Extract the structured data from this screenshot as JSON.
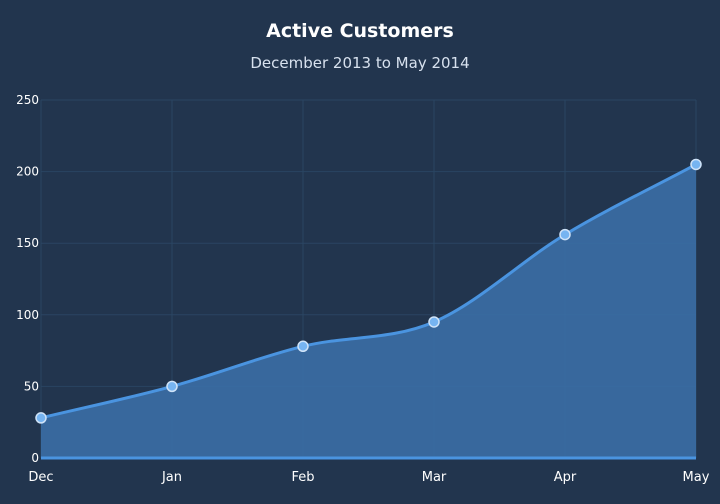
{
  "chart_data": {
    "type": "area",
    "title": "Active Customers",
    "subtitle": "December 2013 to May 2014",
    "categories": [
      "Dec",
      "Jan",
      "Feb",
      "Mar",
      "Apr",
      "May"
    ],
    "series": [
      {
        "values": [
          28,
          50,
          78,
          95,
          156,
          205
        ]
      }
    ],
    "ylim": [
      0,
      250
    ],
    "yticks": [
      0,
      50,
      100,
      150,
      200,
      250
    ],
    "grid": true,
    "colors": {
      "background": "#22354e",
      "line": "#4a94e0",
      "fill": "#3b6ea6",
      "point": "#76b4f1",
      "grid": "#2a4562",
      "axis": "#4a94e0",
      "text": "#ffffff"
    }
  }
}
